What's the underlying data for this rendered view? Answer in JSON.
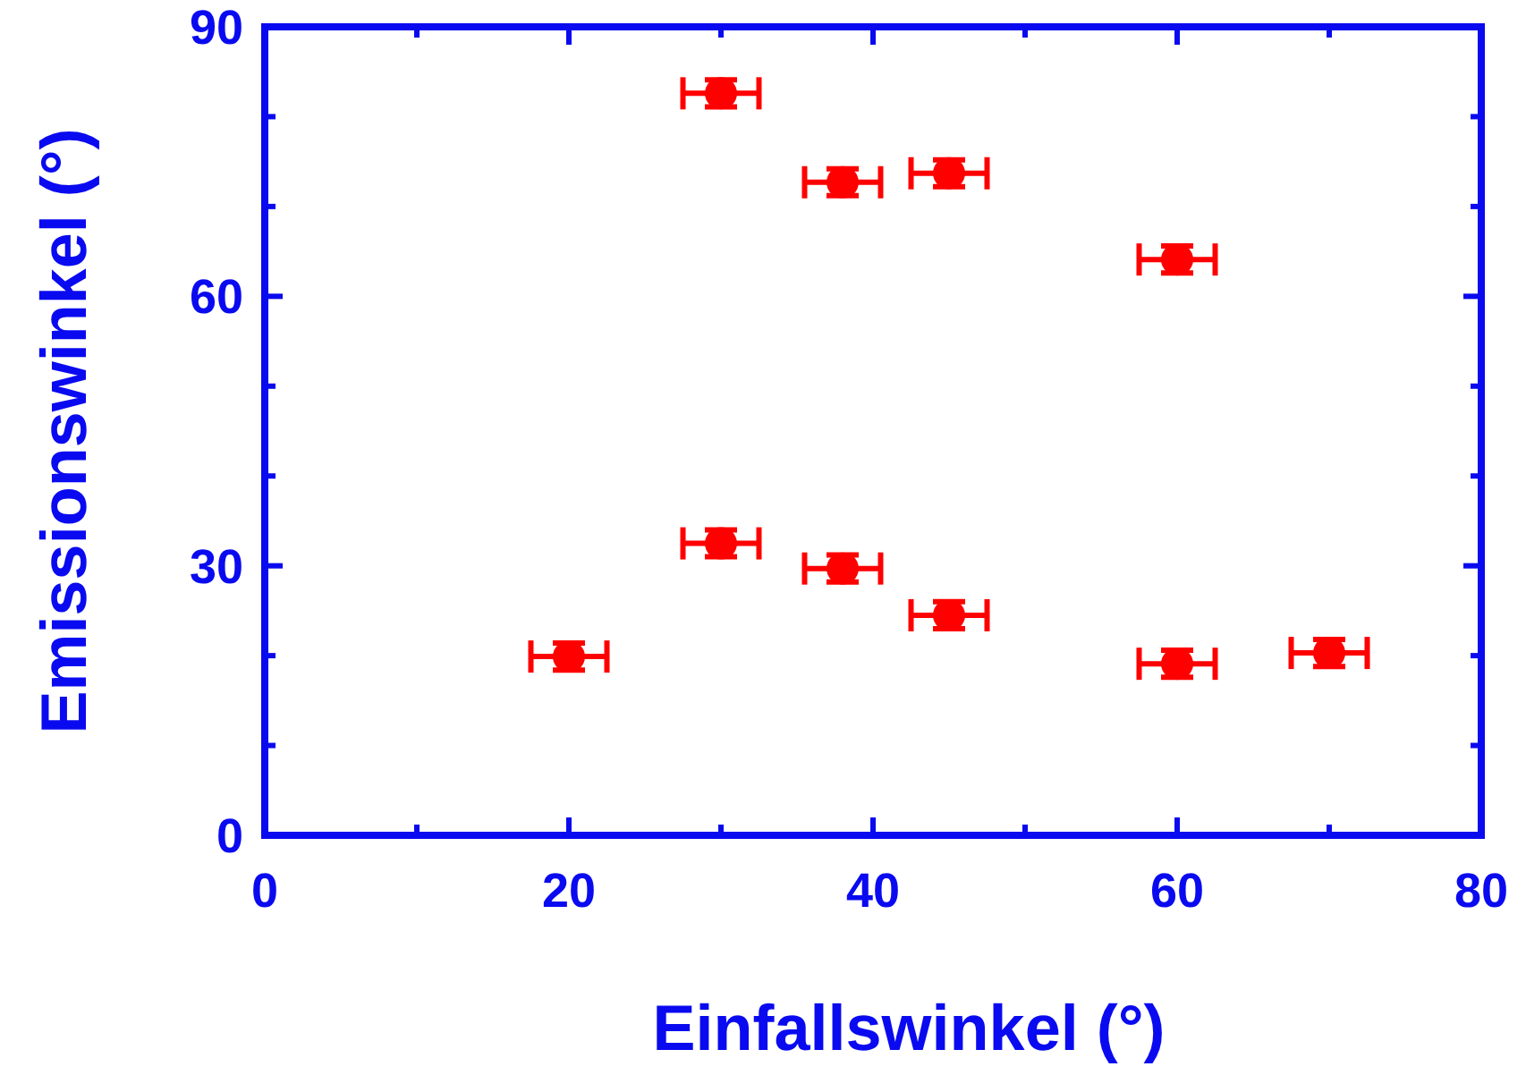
{
  "chart_data": {
    "type": "scatter",
    "xlabel": "Einfallswinkel (°)",
    "ylabel": "Emissionswinkel (°)",
    "x": [
      30,
      38,
      45,
      60,
      30,
      38,
      45,
      20,
      60,
      70
    ],
    "values": [
      82.6,
      72.7,
      73.7,
      64.1,
      32.5,
      29.7,
      24.5,
      19.9,
      19.1,
      20.3
    ],
    "color": "#ff0000",
    "marker": "circle",
    "errors": [
      1.5,
      1.5,
      1.5,
      1.5,
      1.5,
      1.5,
      1.5,
      1.5,
      1.5,
      1.5
    ],
    "xerrors": [
      2.5,
      2.5,
      2.5,
      2.5,
      2.5,
      2.5,
      2.5,
      2.5,
      2.5,
      2.5
    ],
    "xlim": [
      0,
      80
    ],
    "ylim": [
      0,
      90
    ],
    "xticks": [
      0,
      {
        "value": 10,
        "label": null
      },
      20,
      {
        "value": 30,
        "label": null
      },
      40,
      {
        "value": 50,
        "label": null
      },
      60,
      {
        "value": 70,
        "label": null
      },
      80
    ],
    "yticks": [
      0,
      {
        "value": 10,
        "label": null
      },
      {
        "value": 20,
        "label": null
      },
      30,
      {
        "value": 40,
        "label": null
      },
      {
        "value": 50,
        "label": null
      },
      60,
      {
        "value": 70,
        "label": null
      },
      {
        "value": 80,
        "label": null
      },
      90
    ],
    "grid": false
  }
}
